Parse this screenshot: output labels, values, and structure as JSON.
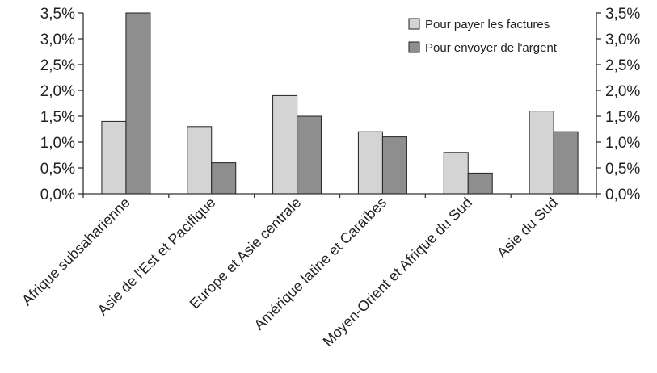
{
  "chart_data": {
    "type": "bar",
    "categories": [
      "Afrique subsaharienne",
      "Asie de l'Est et Pacifique",
      "Europe et Asie centrale",
      "Amérique latine et Caraïbes",
      "Moyen-Orient et Afrique du Sud",
      "Asie du Sud"
    ],
    "series": [
      {
        "name": "Pour payer les factures",
        "color": "#d4d4d4",
        "values": [
          1.4,
          1.3,
          1.9,
          1.2,
          0.8,
          1.6
        ]
      },
      {
        "name": "Pour envoyer de l'argent",
        "color": "#8e8e8e",
        "values": [
          3.5,
          0.6,
          1.5,
          1.1,
          0.4,
          1.2
        ]
      }
    ],
    "ylim": [
      0,
      3.5
    ],
    "yticks": [
      "0,0%",
      "0,5%",
      "1,0%",
      "1,5%",
      "2,0%",
      "2,5%",
      "3,0%",
      "3,5%"
    ],
    "ytick_values": [
      0,
      0.5,
      1.0,
      1.5,
      2.0,
      2.5,
      3.0,
      3.5
    ],
    "legend_position": "top-right",
    "grid": false,
    "dual_y_axis": true
  }
}
